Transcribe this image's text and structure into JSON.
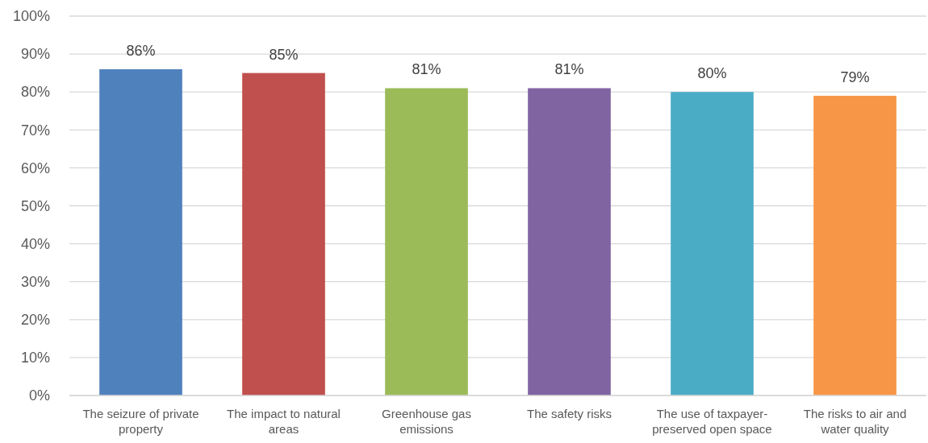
{
  "chart_data": {
    "type": "bar",
    "categories": [
      "The seizure of private property",
      "The impact to natural areas",
      "Greenhouse gas emissions",
      "The safety risks",
      "The use of taxpayer-preserved open space",
      "The risks to air and water quality"
    ],
    "values": [
      86,
      85,
      81,
      81,
      80,
      79
    ],
    "value_labels": [
      "86%",
      "85%",
      "81%",
      "81%",
      "80%",
      "79%"
    ],
    "colors": [
      "#4f81bd",
      "#c0504d",
      "#9bbb59",
      "#8064a2",
      "#4bacc6",
      "#f79646"
    ],
    "ylim": [
      0,
      100
    ],
    "yticks": [
      {
        "value": 0,
        "label": "0%"
      },
      {
        "value": 10,
        "label": "10%"
      },
      {
        "value": 20,
        "label": "20%"
      },
      {
        "value": 30,
        "label": "30%"
      },
      {
        "value": 40,
        "label": "40%"
      },
      {
        "value": 50,
        "label": "50%"
      },
      {
        "value": 60,
        "label": "60%"
      },
      {
        "value": 70,
        "label": "70%"
      },
      {
        "value": 80,
        "label": "80%"
      },
      {
        "value": 90,
        "label": "90%"
      },
      {
        "value": 100,
        "label": "100%"
      }
    ],
    "grid": "y"
  }
}
